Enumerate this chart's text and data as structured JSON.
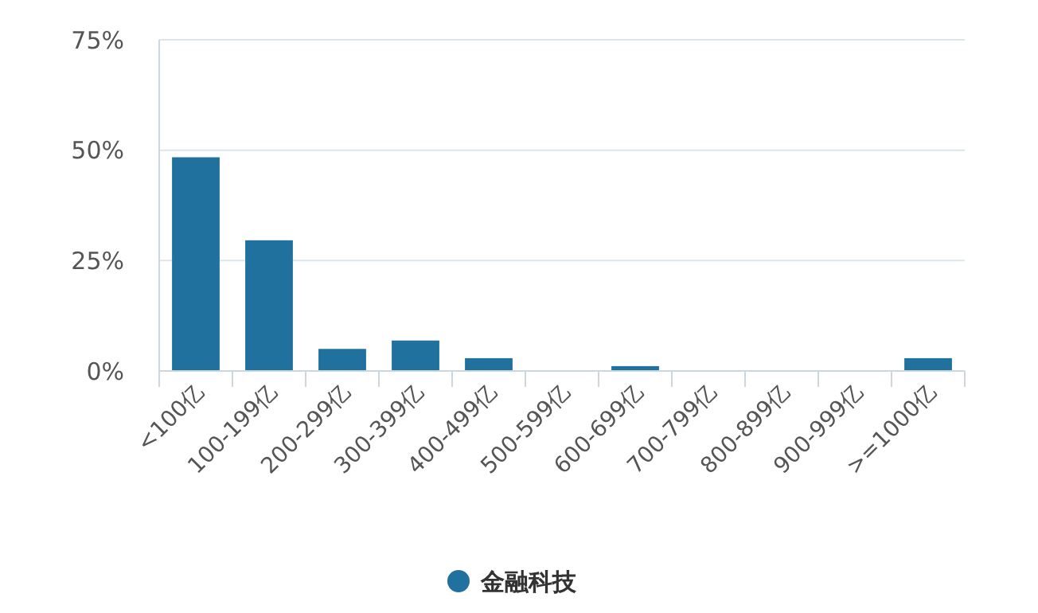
{
  "chart_data": {
    "type": "bar",
    "categories": [
      "<100亿",
      "100-199亿",
      "200-299亿",
      "300-399亿",
      "400-499亿",
      "500-599亿",
      "600-699亿",
      "700-799亿",
      "800-899亿",
      "900-999亿",
      ">=1000亿"
    ],
    "series": [
      {
        "name": "金融科技",
        "color": "#21719f",
        "values": [
          48.4,
          29.6,
          5,
          6.9,
          2.9,
          0,
          1.1,
          0,
          0,
          0,
          2.9
        ]
      }
    ],
    "ylim": [
      0,
      75
    ],
    "yticks": [
      {
        "value": 0,
        "label": "0%"
      },
      {
        "value": 25,
        "label": "25%"
      },
      {
        "value": 50,
        "label": "50%"
      },
      {
        "value": 75,
        "label": "75%"
      }
    ],
    "grid": "y",
    "legend": "bottom"
  }
}
